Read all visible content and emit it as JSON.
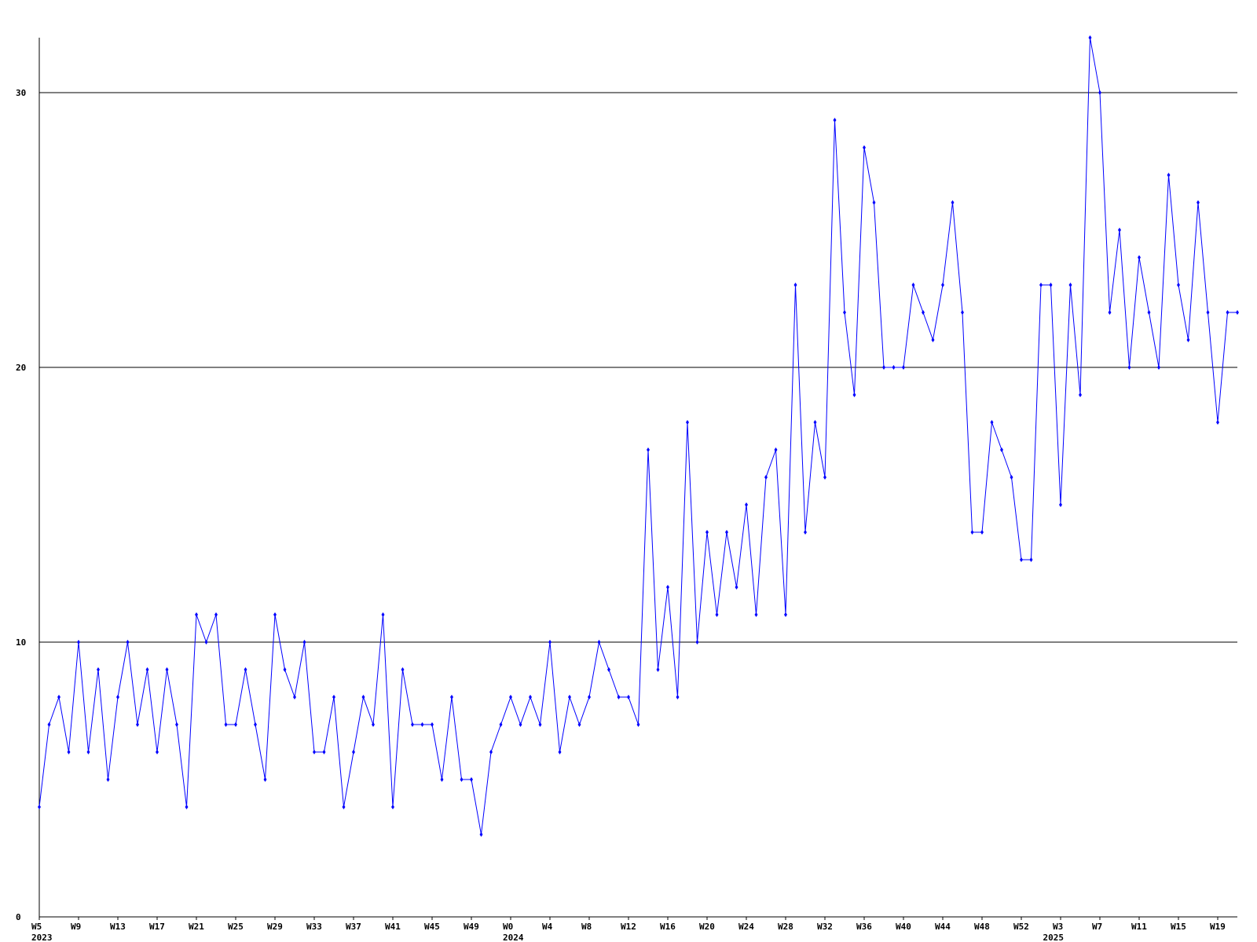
{
  "chart_data": {
    "type": "line",
    "color": "#0000ff",
    "categories": [
      "W5",
      null,
      null,
      null,
      "W9",
      null,
      null,
      null,
      "W13",
      null,
      null,
      null,
      "W17",
      null,
      null,
      null,
      "W21",
      null,
      null,
      null,
      "W25",
      null,
      null,
      null,
      "W29",
      null,
      null,
      null,
      "W33",
      null,
      null,
      null,
      "W37",
      null,
      null,
      null,
      "W41",
      null,
      null,
      null,
      "W45",
      null,
      null,
      null,
      "W49",
      null,
      null,
      null,
      "W0",
      null,
      null,
      null,
      "W4",
      null,
      null,
      null,
      "W8",
      null,
      null,
      null,
      "W12",
      null,
      null,
      null,
      "W16",
      null,
      null,
      null,
      "W20",
      null,
      null,
      null,
      "W24",
      null,
      null,
      null,
      "W28",
      null,
      null,
      null,
      "W32",
      null,
      null,
      null,
      "W36",
      null,
      null,
      null,
      "W40",
      null,
      null,
      null,
      "W44",
      null,
      null,
      null,
      "W48",
      null,
      null,
      null,
      "W52",
      null,
      null,
      null,
      "W3",
      null,
      null,
      null,
      "W7",
      null,
      null,
      null,
      "W11",
      null,
      null,
      null,
      "W15",
      null,
      null,
      null,
      "W19",
      null,
      null
    ],
    "years": [
      "2023",
      null,
      null,
      null,
      null,
      null,
      null,
      null,
      null,
      null,
      null,
      null,
      null,
      null,
      null,
      null,
      null,
      null,
      null,
      null,
      null,
      null,
      null,
      null,
      null,
      null,
      null,
      null,
      null,
      null,
      null,
      null,
      null,
      null,
      null,
      null,
      null,
      null,
      null,
      null,
      null,
      null,
      null,
      null,
      null,
      null,
      null,
      null,
      "2024",
      null,
      null,
      null,
      null,
      null,
      null,
      null,
      null,
      null,
      null,
      null,
      null,
      null,
      null,
      null,
      null,
      null,
      null,
      null,
      null,
      null,
      null,
      null,
      null,
      null,
      null,
      null,
      null,
      null,
      null,
      null,
      null,
      null,
      null,
      null,
      null,
      null,
      null,
      null,
      null,
      null,
      null,
      null,
      null,
      null,
      null,
      null,
      null,
      null,
      null,
      null,
      null,
      null,
      null,
      "2025",
      null,
      null,
      null,
      null,
      null,
      null,
      null,
      null,
      null,
      null,
      null,
      null,
      null,
      null,
      null,
      null,
      null,
      null,
      null,
      null,
      null
    ],
    "values": [
      4,
      7,
      8,
      6,
      10,
      6,
      9,
      5,
      8,
      10,
      7,
      9,
      6,
      9,
      7,
      4,
      11,
      10,
      11,
      7,
      7,
      9,
      7,
      5,
      11,
      9,
      8,
      10,
      6,
      6,
      8,
      4,
      6,
      8,
      7,
      11,
      4,
      9,
      7,
      7,
      7,
      5,
      8,
      5,
      5,
      3,
      6,
      7,
      8,
      7,
      8,
      7,
      10,
      6,
      8,
      7,
      8,
      10,
      9,
      8,
      8,
      7,
      17,
      9,
      12,
      8,
      18,
      10,
      14,
      11,
      14,
      12,
      15,
      11,
      16,
      17,
      11,
      23,
      14,
      18,
      16,
      29,
      22,
      19,
      28,
      26,
      20,
      20,
      20,
      23,
      22,
      21,
      23,
      26,
      22,
      14,
      14,
      18,
      17,
      16,
      13,
      13,
      23,
      23,
      15,
      23,
      19,
      32,
      30,
      22,
      25,
      20,
      24,
      22,
      20,
      27,
      23,
      21,
      26,
      22,
      18,
      22,
      22
    ],
    "ylim": [
      0,
      32
    ],
    "yticks": [
      0,
      10,
      20,
      30
    ],
    "grid": true
  }
}
